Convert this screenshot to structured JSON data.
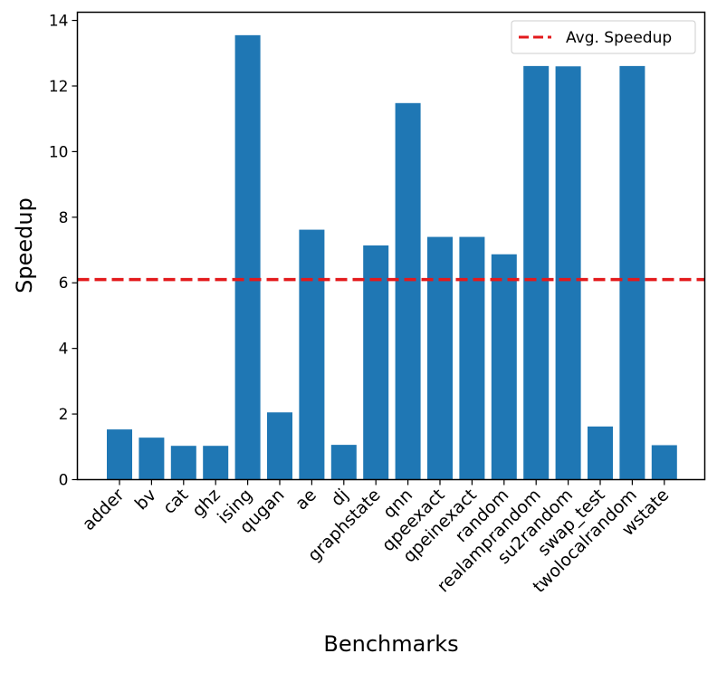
{
  "chart_data": {
    "type": "bar",
    "title": "",
    "xlabel": "Benchmarks",
    "ylabel": "Speedup",
    "ylim": [
      0,
      14.25
    ],
    "yticks": [
      0,
      2,
      4,
      6,
      8,
      10,
      12,
      14
    ],
    "categories": [
      "adder",
      "bv",
      "cat",
      "ghz",
      "ising",
      "qugan",
      "ae",
      "dj",
      "graphstate",
      "qnn",
      "qpeexact",
      "qpeinexact",
      "random",
      "realamprandom",
      "su2random",
      "swap_test",
      "twolocalrandom",
      "wstate"
    ],
    "values": [
      1.53,
      1.28,
      1.03,
      1.03,
      13.55,
      2.05,
      7.62,
      1.06,
      7.14,
      11.48,
      7.4,
      7.4,
      6.87,
      12.61,
      12.6,
      1.62,
      12.61,
      1.05
    ],
    "bar_color": "#1f77b4",
    "reference_line": {
      "label": "Avg. Speedup",
      "value": 6.1,
      "color": "#e31a1c",
      "style": "dashed"
    },
    "legend_position": "top-right",
    "grid": false
  }
}
